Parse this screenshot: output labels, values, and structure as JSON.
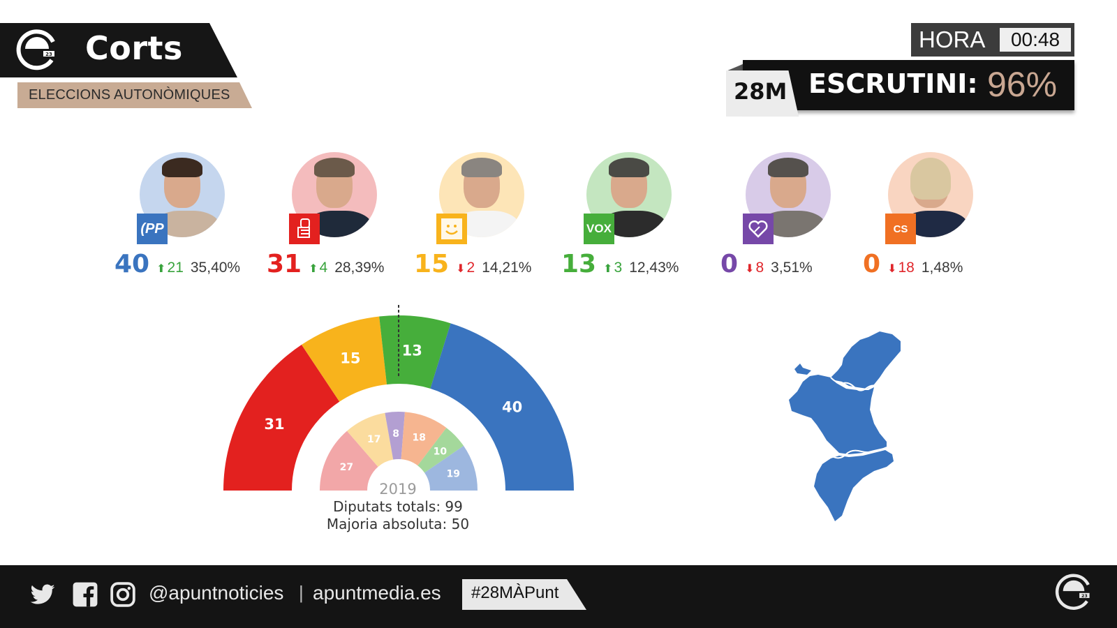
{
  "header": {
    "brand_title": "Corts",
    "subtitle": "ELECCIONS AUTONÒMIQUES",
    "logo_icon": "apunt-circle-logo",
    "hora_label": "HORA",
    "hora_value": "00:48",
    "date_badge": "28M",
    "escrutini_label": "ESCRUTINI:",
    "escrutini_value": "96%"
  },
  "colors": {
    "pp": "#3a74bf",
    "psoe": "#e3211f",
    "compromis": "#f8b31c",
    "vox": "#46ae3b",
    "podem": "#7648a8",
    "cs": "#f07023",
    "accent_tan": "#c8ab94",
    "dark": "#141414"
  },
  "candidates": [
    {
      "party": "PP",
      "logo_icon": "pp-logo",
      "seats": "40",
      "delta_dir": "up",
      "delta_arrow": "⬆",
      "delta": "21",
      "pct": "35,40%",
      "color": "#3a74bf",
      "bg": "#c5d6ee"
    },
    {
      "party": "PSOE",
      "logo_icon": "psoe-rose-logo",
      "seats": "31",
      "delta_dir": "up",
      "delta_arrow": "⬆",
      "delta": "4",
      "pct": "28,39%",
      "color": "#e3211f",
      "bg": "#f4bcbd"
    },
    {
      "party": "Compromís",
      "logo_icon": "compromis-smile-logo",
      "seats": "15",
      "delta_dir": "down",
      "delta_arrow": "⬇",
      "delta": "2",
      "pct": "14,21%",
      "color": "#f8b31c",
      "bg": "#fde5b7"
    },
    {
      "party": "Vox",
      "logo_icon": "vox-logo",
      "logo_text": "VOX",
      "seats": "13",
      "delta_dir": "up",
      "delta_arrow": "⬆",
      "delta": "3",
      "pct": "12,43%",
      "color": "#46ae3b",
      "bg": "#c4e6c0"
    },
    {
      "party": "Unides Podem",
      "logo_icon": "podem-heart-logo",
      "seats": "0",
      "delta_dir": "down",
      "delta_arrow": "⬇",
      "delta": "8",
      "pct": "3,51%",
      "color": "#7648a8",
      "bg": "#d8cbe8"
    },
    {
      "party": "Cs",
      "logo_icon": "cs-logo",
      "logo_text": "CS",
      "seats": "0",
      "delta_dir": "down",
      "delta_arrow": "⬇",
      "delta": "18",
      "pct": "1,48%",
      "color": "#f07023",
      "bg": "#f9d5c1"
    }
  ],
  "chart_data": [
    {
      "type": "pie",
      "subtype": "parliament-hemicycle",
      "title": "2023 seats",
      "categories": [
        "PSOE",
        "Compromís",
        "Vox",
        "PP"
      ],
      "values": [
        31,
        15,
        13,
        40
      ],
      "colors": [
        "#e3211f",
        "#f8b31c",
        "#46ae3b",
        "#3a74bf"
      ],
      "total": 99,
      "majority_line": 50
    },
    {
      "type": "pie",
      "subtype": "parliament-hemicycle",
      "title": "2019",
      "categories": [
        "PSOE",
        "Compromís",
        "Unides Podem",
        "Cs",
        "Vox",
        "PP"
      ],
      "values": [
        27,
        17,
        8,
        18,
        10,
        19
      ],
      "colors": [
        "#f2a7a8",
        "#fbdc9e",
        "#b39fd2",
        "#f6b590",
        "#a4d89b",
        "#9db7df"
      ],
      "total": 99
    }
  ],
  "chart_footer": {
    "year": "2019",
    "total_label": "Diputats totals: 99",
    "majority_label": "Majoria absoluta: 50"
  },
  "map": {
    "region": "Comunitat Valenciana",
    "color": "#3a74bf"
  },
  "footer": {
    "social_icons": [
      "twitter-icon",
      "facebook-icon",
      "instagram-icon"
    ],
    "handle": "@apuntnoticies",
    "separator": "|",
    "site": "apuntmedia.es",
    "hashtag": "#28MÀPunt"
  }
}
